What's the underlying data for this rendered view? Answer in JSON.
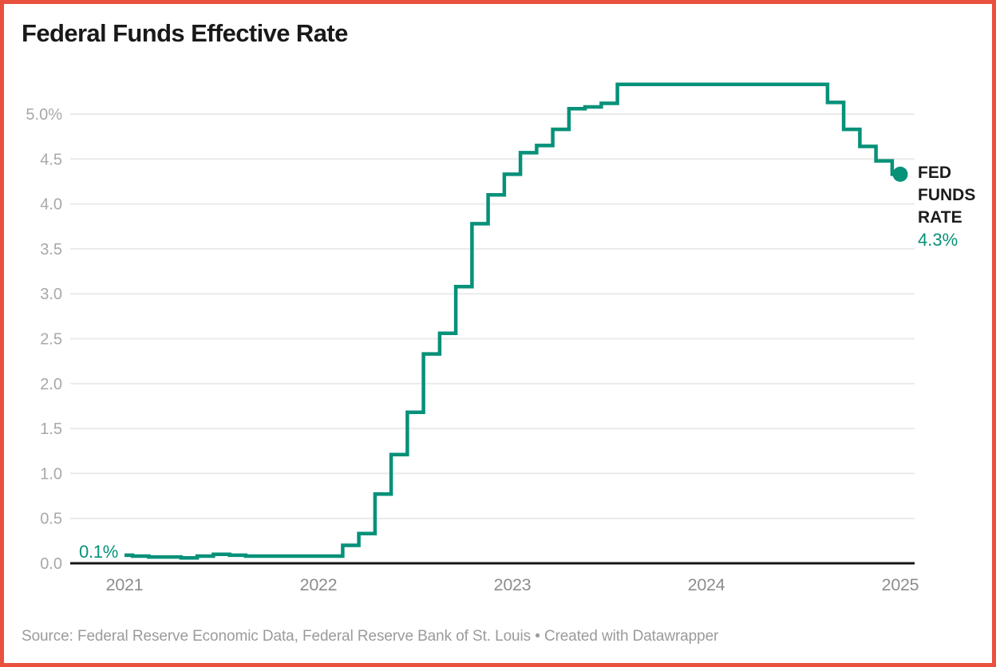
{
  "header": {
    "title": "Federal Funds Effective Rate"
  },
  "annotations": {
    "start_label": "0.1%",
    "series_label_lines": [
      "FED",
      "FUNDS",
      "RATE"
    ],
    "end_value": "4.3%"
  },
  "footer": {
    "text": "Source: Federal Reserve Economic Data, Federal Reserve Bank of St. Louis • Created with Datawrapper"
  },
  "colors": {
    "accent": "#069179",
    "frame_border": "#e9513e",
    "grid": "#eaeaea",
    "zero_axis": "#161616",
    "y_label": "#a8a8a8",
    "x_label": "#8d8d8d",
    "title": "#191919",
    "source": "#9b9b9b"
  },
  "chart_data": {
    "type": "line",
    "line_style": "step-center",
    "title": "Federal Funds Effective Rate",
    "ylabel": "",
    "xlabel": "",
    "ylim": [
      0,
      5.5
    ],
    "grid": "horizontal",
    "legend_position": "end-of-line",
    "series_name": "FED FUNDS RATE",
    "line_color": "#069179",
    "x": [
      "2021-01",
      "2021-02",
      "2021-03",
      "2021-04",
      "2021-05",
      "2021-06",
      "2021-07",
      "2021-08",
      "2021-09",
      "2021-10",
      "2021-11",
      "2021-12",
      "2022-01",
      "2022-02",
      "2022-03",
      "2022-04",
      "2022-05",
      "2022-06",
      "2022-07",
      "2022-08",
      "2022-09",
      "2022-10",
      "2022-11",
      "2022-12",
      "2023-01",
      "2023-02",
      "2023-03",
      "2023-04",
      "2023-05",
      "2023-06",
      "2023-07",
      "2023-08",
      "2023-09",
      "2023-10",
      "2023-11",
      "2023-12",
      "2024-01",
      "2024-02",
      "2024-03",
      "2024-04",
      "2024-05",
      "2024-06",
      "2024-07",
      "2024-08",
      "2024-09",
      "2024-10",
      "2024-11",
      "2024-12",
      "2025-01"
    ],
    "values": [
      0.09,
      0.08,
      0.07,
      0.07,
      0.06,
      0.08,
      0.1,
      0.09,
      0.08,
      0.08,
      0.08,
      0.08,
      0.08,
      0.08,
      0.2,
      0.33,
      0.77,
      1.21,
      1.68,
      2.33,
      2.56,
      3.08,
      3.78,
      4.1,
      4.33,
      4.57,
      4.65,
      4.83,
      5.06,
      5.08,
      5.12,
      5.33,
      5.33,
      5.33,
      5.33,
      5.33,
      5.33,
      5.33,
      5.33,
      5.33,
      5.33,
      5.33,
      5.33,
      5.33,
      5.13,
      4.83,
      4.64,
      4.48,
      4.33
    ],
    "first_value_label": "0.1%",
    "last_value_label": "4.3%",
    "y_ticks": {
      "values": [
        0.0,
        0.5,
        1.0,
        1.5,
        2.0,
        2.5,
        3.0,
        3.5,
        4.0,
        4.5,
        5.0
      ],
      "labels": [
        "0.0",
        "0.5",
        "1.0",
        "1.5",
        "2.0",
        "2.5",
        "3.0",
        "3.5",
        "4.0",
        "4.5",
        "5.0%"
      ]
    },
    "x_ticks": {
      "labels": [
        "2021",
        "2022",
        "2023",
        "2024",
        "2025"
      ],
      "month_index": [
        0,
        12,
        24,
        36,
        48
      ]
    }
  }
}
